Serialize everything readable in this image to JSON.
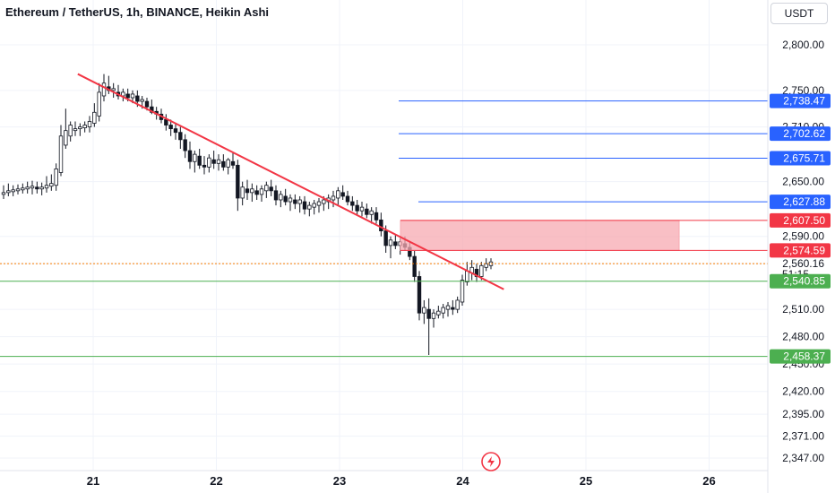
{
  "header": {
    "title": "Ethereum / TetherUS, 1h, BINANCE, Heikin Ashi",
    "currency": "USDT"
  },
  "chart_data": {
    "type": "candlestick",
    "style": "Heikin Ashi",
    "symbol": "Ethereum / TetherUS",
    "interval": "1h",
    "exchange": "BINANCE",
    "currency": "USDT",
    "x_ticks": [
      "21",
      "22",
      "23",
      "24",
      "25",
      "26"
    ],
    "y_ticks": [
      "2,800.00",
      "2,750.00",
      "2,710.00",
      "2,650.00",
      "2,590.00",
      "2,560.16",
      "2,510.00",
      "2,480.00",
      "2,450.00",
      "2,420.00",
      "2,395.00",
      "2,371.00",
      "2,347.00"
    ],
    "y_range": [
      2330,
      2820
    ],
    "current_price": "2,560.16",
    "countdown": "51:15",
    "candles": [
      [
        2636,
        2646,
        2631,
        2638
      ],
      [
        2638,
        2648,
        2634,
        2640
      ],
      [
        2639,
        2646,
        2634,
        2641
      ],
      [
        2640,
        2647,
        2636,
        2642
      ],
      [
        2641,
        2648,
        2637,
        2643
      ],
      [
        2642,
        2650,
        2637,
        2644
      ],
      [
        2643,
        2651,
        2636,
        2645
      ],
      [
        2644,
        2650,
        2637,
        2642
      ],
      [
        2642,
        2649,
        2635,
        2644
      ],
      [
        2643,
        2656,
        2638,
        2646
      ],
      [
        2645,
        2658,
        2640,
        2648
      ],
      [
        2646,
        2670,
        2640,
        2664
      ],
      [
        2660,
        2712,
        2656,
        2700
      ],
      [
        2690,
        2730,
        2686,
        2706
      ],
      [
        2700,
        2716,
        2694,
        2712
      ],
      [
        2706,
        2716,
        2700,
        2708
      ],
      [
        2708,
        2714,
        2700,
        2710
      ],
      [
        2709,
        2716,
        2704,
        2712
      ],
      [
        2710,
        2722,
        2704,
        2716
      ],
      [
        2714,
        2736,
        2710,
        2726
      ],
      [
        2722,
        2758,
        2716,
        2748
      ],
      [
        2744,
        2768,
        2738,
        2758
      ],
      [
        2754,
        2766,
        2746,
        2750
      ],
      [
        2750,
        2758,
        2742,
        2752
      ],
      [
        2748,
        2756,
        2740,
        2744
      ],
      [
        2744,
        2752,
        2738,
        2748
      ],
      [
        2746,
        2752,
        2738,
        2742
      ],
      [
        2742,
        2750,
        2736,
        2746
      ],
      [
        2744,
        2750,
        2732,
        2738
      ],
      [
        2738,
        2744,
        2730,
        2740
      ],
      [
        2738,
        2742,
        2728,
        2732
      ],
      [
        2732,
        2740,
        2724,
        2726
      ],
      [
        2727,
        2732,
        2718,
        2724
      ],
      [
        2724,
        2730,
        2714,
        2718
      ],
      [
        2718,
        2724,
        2706,
        2712
      ],
      [
        2712,
        2718,
        2700,
        2708
      ],
      [
        2708,
        2714,
        2696,
        2704
      ],
      [
        2704,
        2710,
        2686,
        2696
      ],
      [
        2696,
        2702,
        2676,
        2684
      ],
      [
        2684,
        2694,
        2664,
        2672
      ],
      [
        2672,
        2684,
        2660,
        2680
      ],
      [
        2678,
        2686,
        2664,
        2668
      ],
      [
        2668,
        2678,
        2658,
        2666
      ],
      [
        2666,
        2680,
        2660,
        2676
      ],
      [
        2674,
        2684,
        2664,
        2670
      ],
      [
        2670,
        2680,
        2662,
        2674
      ],
      [
        2672,
        2680,
        2662,
        2666
      ],
      [
        2666,
        2676,
        2658,
        2674
      ],
      [
        2672,
        2682,
        2664,
        2668
      ],
      [
        2668,
        2674,
        2618,
        2632
      ],
      [
        2632,
        2650,
        2624,
        2644
      ],
      [
        2642,
        2652,
        2630,
        2638
      ],
      [
        2638,
        2648,
        2628,
        2642
      ],
      [
        2640,
        2646,
        2630,
        2636
      ],
      [
        2636,
        2646,
        2628,
        2642
      ],
      [
        2640,
        2650,
        2632,
        2646
      ],
      [
        2644,
        2652,
        2634,
        2640
      ],
      [
        2640,
        2646,
        2624,
        2630
      ],
      [
        2630,
        2640,
        2622,
        2636
      ],
      [
        2634,
        2642,
        2624,
        2628
      ],
      [
        2628,
        2636,
        2618,
        2632
      ],
      [
        2630,
        2636,
        2620,
        2626
      ],
      [
        2626,
        2634,
        2616,
        2630
      ],
      [
        2628,
        2634,
        2614,
        2620
      ],
      [
        2620,
        2628,
        2612,
        2624
      ],
      [
        2622,
        2630,
        2614,
        2626
      ],
      [
        2624,
        2632,
        2616,
        2628
      ],
      [
        2626,
        2634,
        2618,
        2630
      ],
      [
        2628,
        2636,
        2620,
        2632
      ],
      [
        2630,
        2640,
        2622,
        2634
      ],
      [
        2632,
        2644,
        2624,
        2640
      ],
      [
        2638,
        2646,
        2630,
        2634
      ],
      [
        2634,
        2640,
        2624,
        2628
      ],
      [
        2628,
        2634,
        2618,
        2624
      ],
      [
        2624,
        2630,
        2614,
        2618
      ],
      [
        2618,
        2628,
        2612,
        2622
      ],
      [
        2620,
        2626,
        2610,
        2614
      ],
      [
        2614,
        2622,
        2604,
        2618
      ],
      [
        2616,
        2622,
        2604,
        2608
      ],
      [
        2608,
        2616,
        2590,
        2596
      ],
      [
        2596,
        2602,
        2572,
        2580
      ],
      [
        2580,
        2590,
        2566,
        2586
      ],
      [
        2584,
        2592,
        2576,
        2580
      ],
      [
        2580,
        2588,
        2570,
        2584
      ],
      [
        2582,
        2590,
        2574,
        2578
      ],
      [
        2578,
        2584,
        2564,
        2568
      ],
      [
        2568,
        2574,
        2540,
        2546
      ],
      [
        2546,
        2552,
        2498,
        2506
      ],
      [
        2506,
        2520,
        2494,
        2512
      ],
      [
        2510,
        2522,
        2460,
        2500
      ],
      [
        2500,
        2510,
        2490,
        2506
      ],
      [
        2504,
        2514,
        2500,
        2508
      ],
      [
        2506,
        2516,
        2500,
        2512
      ],
      [
        2510,
        2518,
        2502,
        2514
      ],
      [
        2512,
        2520,
        2504,
        2510
      ],
      [
        2510,
        2524,
        2506,
        2520
      ],
      [
        2518,
        2548,
        2514,
        2542
      ],
      [
        2540,
        2562,
        2536,
        2552
      ],
      [
        2550,
        2564,
        2542,
        2556
      ],
      [
        2554,
        2560,
        2540,
        2546
      ],
      [
        2546,
        2562,
        2542,
        2558
      ],
      [
        2556,
        2566,
        2552,
        2560
      ],
      [
        2558,
        2566,
        2554,
        2562
      ]
    ],
    "trendline": {
      "start": {
        "x": "20 21:00",
        "y": 2768
      },
      "end": {
        "x": "24 08:00",
        "y": 2532
      },
      "color": "#f23645"
    },
    "horizontal_levels": [
      {
        "value": 2738.47,
        "label": "2,738.47",
        "color": "#2962ff"
      },
      {
        "value": 2702.62,
        "label": "2,702.62",
        "color": "#2962ff"
      },
      {
        "value": 2675.71,
        "label": "2,675.71",
        "color": "#2962ff"
      },
      {
        "value": 2627.88,
        "label": "2,627.88",
        "color": "#2962ff"
      },
      {
        "value": 2540.85,
        "label": "2,540.85",
        "color": "#4caf50"
      },
      {
        "value": 2458.37,
        "label": "2,458.37",
        "color": "#4caf50"
      }
    ],
    "zone": {
      "top": 2607.5,
      "bottom": 2574.59,
      "top_label": "2,607.50",
      "bottom_label": "2,574.59",
      "color": "#f23645",
      "fill": "#f7a9b1"
    },
    "colors": {
      "up": "#ffffff",
      "down": "#131722",
      "grid": "#f0f3fa",
      "price_line": "#f57c00",
      "axis_text": "#131722"
    }
  }
}
